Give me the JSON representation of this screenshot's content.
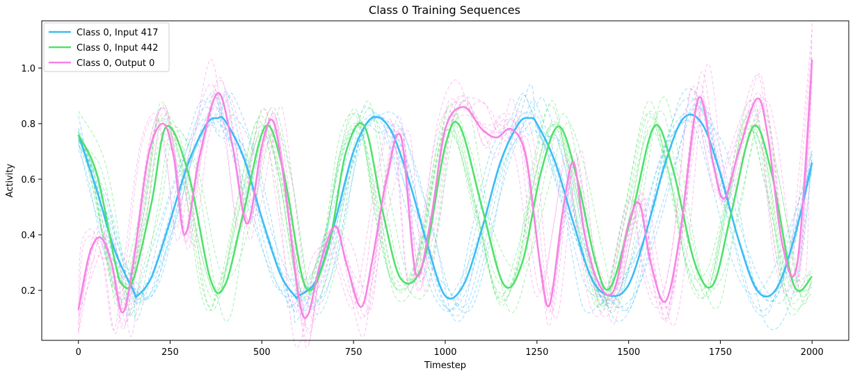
{
  "chart_data": {
    "type": "line",
    "title": "Class 0 Training Sequences",
    "xlabel": "Timestep",
    "ylabel": "Activity",
    "xlim": [
      -100,
      2100
    ],
    "ylim": [
      0.02,
      1.17
    ],
    "xticks": [
      0,
      250,
      500,
      750,
      1000,
      1250,
      1500,
      1750,
      2000
    ],
    "yticks": [
      0.2,
      0.4,
      0.6,
      0.8,
      1.0
    ],
    "xtick_labels": [
      "0",
      "250",
      "500",
      "750",
      "1000",
      "1250",
      "1500",
      "1750",
      "2000"
    ],
    "ytick_labels": [
      "0.2",
      "0.4",
      "0.6",
      "0.8",
      "1.0"
    ],
    "legend_position": "top-left",
    "grid": false,
    "note_on_dashed": "Each series has a bold mean line plus several thin dashed individual training sequences around it",
    "series": [
      {
        "name": "Class 0, Input 417",
        "color": "#3bbcf5",
        "x": [
          0,
          50,
          100,
          150,
          160,
          200,
          250,
          300,
          350,
          380,
          400,
          450,
          500,
          550,
          590,
          600,
          650,
          700,
          750,
          800,
          850,
          900,
          950,
          1000,
          1050,
          1100,
          1150,
          1200,
          1230,
          1250,
          1300,
          1350,
          1400,
          1450,
          1500,
          1550,
          1600,
          1650,
          1700,
          1750,
          1800,
          1850,
          1900,
          1950,
          2000
        ],
        "values": [
          0.76,
          0.56,
          0.34,
          0.2,
          0.18,
          0.25,
          0.45,
          0.66,
          0.8,
          0.82,
          0.81,
          0.68,
          0.46,
          0.26,
          0.18,
          0.18,
          0.24,
          0.45,
          0.7,
          0.82,
          0.78,
          0.6,
          0.37,
          0.18,
          0.22,
          0.42,
          0.66,
          0.8,
          0.82,
          0.8,
          0.66,
          0.44,
          0.24,
          0.18,
          0.22,
          0.42,
          0.66,
          0.82,
          0.8,
          0.62,
          0.38,
          0.2,
          0.2,
          0.38,
          0.66
        ]
      },
      {
        "name": "Class 0, Input 442",
        "color": "#4fe16a",
        "x": [
          0,
          50,
          100,
          120,
          150,
          200,
          240,
          300,
          360,
          400,
          450,
          510,
          560,
          620,
          680,
          730,
          780,
          830,
          880,
          940,
          1000,
          1040,
          1100,
          1160,
          1210,
          1260,
          1310,
          1360,
          1410,
          1450,
          1510,
          1570,
          1620,
          1680,
          1730,
          1780,
          1840,
          1890,
          1950,
          2000
        ],
        "values": [
          0.76,
          0.62,
          0.3,
          0.22,
          0.24,
          0.52,
          0.79,
          0.62,
          0.24,
          0.22,
          0.48,
          0.79,
          0.62,
          0.21,
          0.35,
          0.7,
          0.79,
          0.48,
          0.24,
          0.3,
          0.72,
          0.79,
          0.5,
          0.22,
          0.3,
          0.62,
          0.79,
          0.6,
          0.3,
          0.21,
          0.48,
          0.79,
          0.64,
          0.3,
          0.22,
          0.48,
          0.79,
          0.62,
          0.22,
          0.25
        ]
      },
      {
        "name": "Class 0, Output 0",
        "color": "#f783e3",
        "x": [
          0,
          30,
          60,
          90,
          120,
          150,
          190,
          230,
          260,
          290,
          330,
          380,
          420,
          460,
          500,
          530,
          560,
          600,
          625,
          660,
          700,
          730,
          770,
          800,
          840,
          880,
          920,
          960,
          1000,
          1050,
          1100,
          1140,
          1180,
          1220,
          1260,
          1285,
          1320,
          1350,
          1380,
          1420,
          1460,
          1500,
          1530,
          1560,
          1600,
          1640,
          1690,
          1730,
          1760,
          1800,
          1850,
          1880,
          1920,
          1960,
          2000
        ],
        "values": [
          0.13,
          0.33,
          0.39,
          0.3,
          0.12,
          0.3,
          0.68,
          0.8,
          0.68,
          0.4,
          0.68,
          0.91,
          0.72,
          0.44,
          0.72,
          0.81,
          0.6,
          0.18,
          0.11,
          0.3,
          0.43,
          0.3,
          0.14,
          0.3,
          0.6,
          0.75,
          0.26,
          0.45,
          0.78,
          0.86,
          0.78,
          0.75,
          0.78,
          0.68,
          0.28,
          0.15,
          0.48,
          0.66,
          0.4,
          0.22,
          0.2,
          0.44,
          0.51,
          0.3,
          0.16,
          0.4,
          0.89,
          0.66,
          0.53,
          0.7,
          0.89,
          0.75,
          0.36,
          0.3,
          1.03
        ]
      }
    ]
  }
}
